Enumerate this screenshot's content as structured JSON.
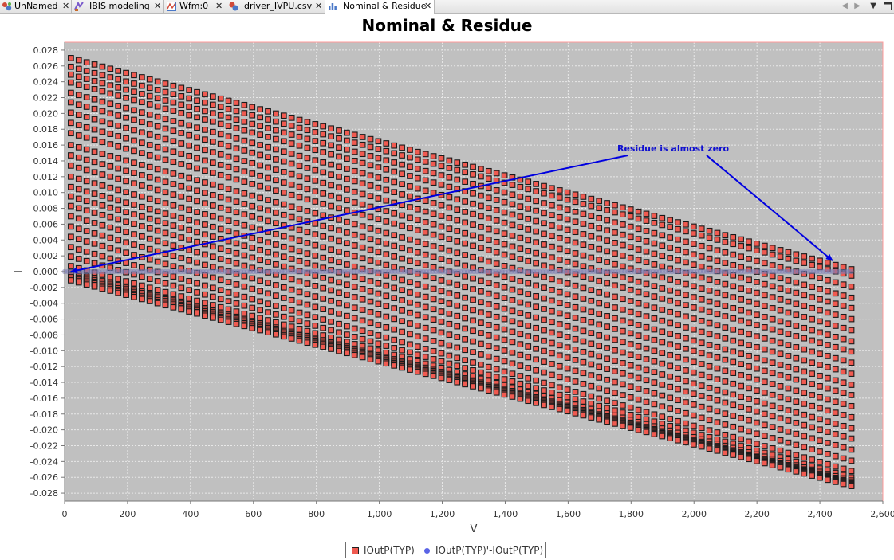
{
  "tabs": [
    {
      "label": "UnNamed",
      "icon": "network-icon",
      "active": false
    },
    {
      "label": "IBIS modeling",
      "icon": "ibis-icon",
      "active": false
    },
    {
      "label": "Wfm:0",
      "icon": "waveform-icon",
      "active": false
    },
    {
      "label": "driver_IVPU.csv",
      "icon": "csv-file-icon",
      "active": false
    },
    {
      "label": "Nominal & Residue",
      "icon": "bar-chart-icon",
      "active": true
    }
  ],
  "tab_close_glyph": "✕",
  "chart_data": {
    "type": "scatter",
    "title": "Nominal & Residue",
    "xlabel": "V",
    "ylabel": "I",
    "xlim": [
      0,
      2600
    ],
    "ylim": [
      -0.029,
      0.029
    ],
    "x_ticks": [
      "0",
      "200",
      "400",
      "600",
      "800",
      "1,000",
      "1,200",
      "1,400",
      "1,600",
      "1,800",
      "2,000",
      "2,200",
      "2,400",
      "2,600"
    ],
    "y_ticks": [
      "0.028",
      "0.026",
      "0.024",
      "0.022",
      "0.020",
      "0.018",
      "0.016",
      "0.014",
      "0.012",
      "0.010",
      "0.008",
      "0.006",
      "0.004",
      "0.002",
      "0.000",
      "-0.002",
      "-0.004",
      "-0.006",
      "-0.008",
      "-0.010",
      "-0.012",
      "-0.014",
      "-0.016",
      "-0.018",
      "-0.020",
      "-0.022",
      "-0.024",
      "-0.026",
      "-0.028"
    ],
    "grid": true,
    "plot_background": "#c0c0c0",
    "legend_position": "bottom",
    "series": [
      {
        "name": "IOutP(TYP)",
        "marker": "square",
        "color": "#f05a50",
        "x_start": 20,
        "x_end": 2500,
        "point_count": 100,
        "curve_count": 28,
        "y_at_x_start": [
          0.027,
          0.0259,
          0.0249,
          0.0239,
          0.0226,
          0.0214,
          0.0201,
          0.0188,
          0.0175,
          0.016,
          0.0147,
          0.0134,
          0.012,
          0.0107,
          0.0095,
          0.0083,
          0.007,
          0.0057,
          0.0044,
          0.0031,
          0.0019,
          0.0007,
          -0.0001,
          -0.0003,
          -0.0005,
          -0.0007,
          -0.0009,
          -0.0011
        ],
        "y_at_x_end": [
          0.0003,
          -0.0005,
          -0.0019,
          -0.0033,
          -0.0046,
          -0.006,
          -0.0074,
          -0.0088,
          -0.0101,
          -0.0115,
          -0.0129,
          -0.0143,
          -0.0156,
          -0.017,
          -0.0184,
          -0.0198,
          -0.0211,
          -0.0225,
          -0.0239,
          -0.0252,
          -0.026,
          -0.0264,
          -0.0266,
          -0.0267,
          -0.0268,
          -0.0269,
          -0.027,
          -0.0271
        ]
      },
      {
        "name": "IOutP(TYP)'-IOutP(TYP)",
        "marker": "circle",
        "color": "#5a64e6",
        "x_start": 0,
        "x_end": 2500,
        "y": 0.0
      }
    ],
    "annotation": {
      "text": "Residue is almost zero",
      "arrows": [
        {
          "from": [
            1790,
            0.0147
          ],
          "to": [
            20,
            0.0
          ]
        },
        {
          "from": [
            2040,
            0.0147
          ],
          "to": [
            2440,
            0.0014
          ]
        }
      ],
      "color": "#0000e0"
    }
  }
}
